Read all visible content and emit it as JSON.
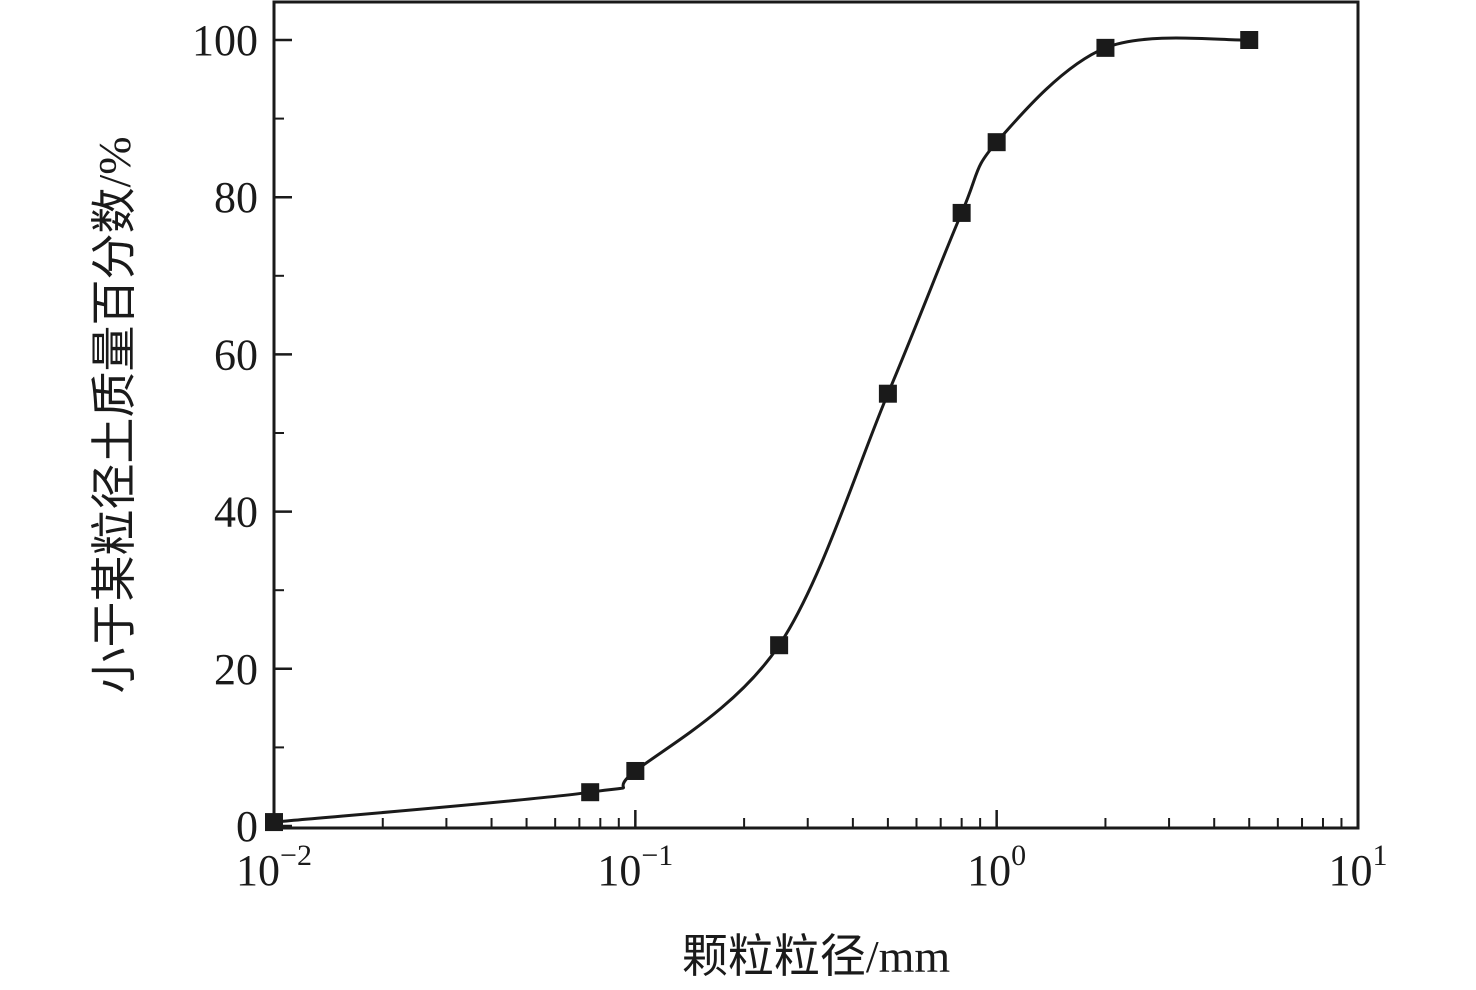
{
  "chart_data": {
    "type": "line",
    "xlabel": "颗粒粒径/mm",
    "ylabel": "小于某粒径土质量百分数/%",
    "x_scale": "log",
    "xlim": [
      0.01,
      10
    ],
    "ylim": [
      0,
      100
    ],
    "x_ticks": [
      {
        "value": 0.01,
        "base": "10",
        "exp": "−2"
      },
      {
        "value": 0.1,
        "base": "10",
        "exp": "−1"
      },
      {
        "value": 1,
        "base": "10",
        "exp": "0"
      },
      {
        "value": 10,
        "base": "10",
        "exp": "1"
      }
    ],
    "y_ticks": [
      0,
      20,
      40,
      60,
      80,
      100
    ],
    "grid": false,
    "marker": "square",
    "color": "#1a1a1a",
    "series": [
      {
        "x": [
          0.01,
          0.075,
          0.1,
          0.25,
          0.5,
          0.8,
          1,
          2,
          5
        ],
        "y": [
          0.5,
          4.3,
          7,
          23,
          55,
          78,
          87,
          99,
          100
        ]
      }
    ]
  }
}
